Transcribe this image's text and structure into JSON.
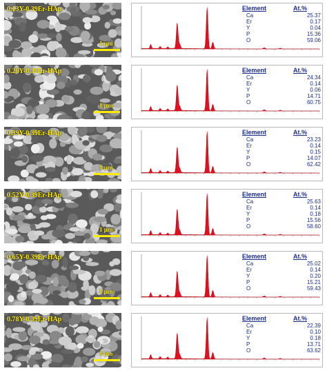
{
  "panels": [
    {
      "sample": "0.13Y-0.39Er-HAp",
      "scale": "1 μm",
      "table": {
        "header_element": "Element",
        "header_at": "At.%",
        "rows": [
          {
            "el": "Ca",
            "v": "25.37"
          },
          {
            "el": "Er",
            "v": "0.17"
          },
          {
            "el": "Y",
            "v": "0.04"
          },
          {
            "el": "P",
            "v": "15.36"
          },
          {
            "el": "O",
            "v": "59.06"
          }
        ]
      }
    },
    {
      "sample": "0.26Y-0.39Er-HAp",
      "scale": "1 μm",
      "table": {
        "header_element": "Element",
        "header_at": "At.%",
        "rows": [
          {
            "el": "Ca",
            "v": "24.34"
          },
          {
            "el": "Er",
            "v": "0.14"
          },
          {
            "el": "Y",
            "v": "0.06"
          },
          {
            "el": "P",
            "v": "14.71"
          },
          {
            "el": "O",
            "v": "60.75"
          }
        ]
      }
    },
    {
      "sample": "0.39Y-0.39Er-HAp",
      "scale": "1 μm",
      "table": {
        "header_element": "Element",
        "header_at": "At.%",
        "rows": [
          {
            "el": "Ca",
            "v": "23.23"
          },
          {
            "el": "Er",
            "v": "0.14"
          },
          {
            "el": "Y",
            "v": "0.15"
          },
          {
            "el": "P",
            "v": "14.07"
          },
          {
            "el": "O",
            "v": "62.42"
          }
        ]
      }
    },
    {
      "sample": "0.52Y-0.39Er-HAp",
      "scale": "1 μm",
      "table": {
        "header_element": "Element",
        "header_at": "At.%",
        "rows": [
          {
            "el": "Ca",
            "v": "25.63"
          },
          {
            "el": "Er",
            "v": "0.14"
          },
          {
            "el": "Y",
            "v": "0.18"
          },
          {
            "el": "P",
            "v": "15.56"
          },
          {
            "el": "O",
            "v": "58.60"
          }
        ]
      }
    },
    {
      "sample": "0.65Y-0.39Er-HAp",
      "scale": "1 μm",
      "table": {
        "header_element": "Element",
        "header_at": "At.%",
        "rows": [
          {
            "el": "Ca",
            "v": "25.02"
          },
          {
            "el": "Er",
            "v": "0.14"
          },
          {
            "el": "Y",
            "v": "0.20"
          },
          {
            "el": "P",
            "v": "15.21"
          },
          {
            "el": "O",
            "v": "59.43"
          }
        ]
      }
    },
    {
      "sample": "0.78Y-0.39Er-HAp",
      "scale": "1 μm",
      "table": {
        "header_element": "Element",
        "header_at": "At.%",
        "rows": [
          {
            "el": "Ca",
            "v": "22.39"
          },
          {
            "el": "Er",
            "v": "0.10"
          },
          {
            "el": "Y",
            "v": "0.18"
          },
          {
            "el": "P",
            "v": "13.71"
          },
          {
            "el": "O",
            "v": "63.62"
          }
        ]
      }
    }
  ],
  "colors": {
    "spectrum_fill": "#e0101e",
    "table_text": "#1c2d8a",
    "sem_label": "#ffeb00"
  }
}
